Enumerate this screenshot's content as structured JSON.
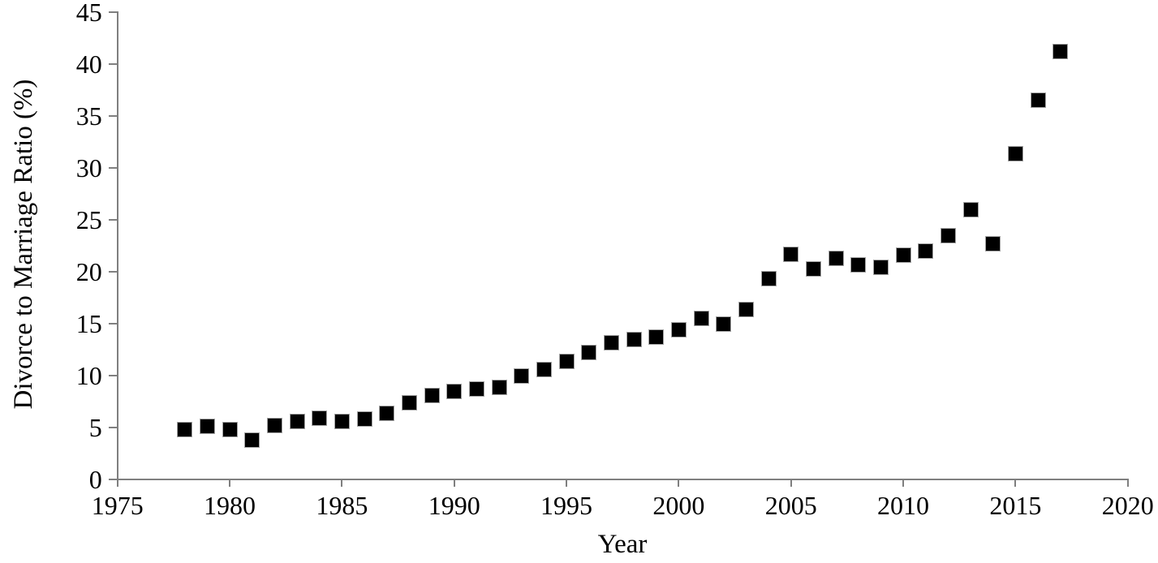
{
  "page": {
    "background": "#ffffff"
  },
  "chart_data": {
    "type": "scatter",
    "title": "",
    "xlabel": "Year",
    "ylabel": "Divorce to Marriage Ratio (%)",
    "xlim": [
      1975,
      2020
    ],
    "ylim": [
      0,
      45
    ],
    "x_tick_step": 5,
    "y_tick_step": 5,
    "x_ticks": [
      "1975",
      "1980",
      "1985",
      "1990",
      "1995",
      "2000",
      "2005",
      "2010",
      "2015",
      "2020"
    ],
    "y_ticks": [
      "0",
      "5",
      "10",
      "15",
      "20",
      "25",
      "30",
      "35",
      "40",
      "45"
    ],
    "grid": false,
    "legend": false,
    "axis_color": "#7f7f7f",
    "marker": {
      "shape": "filled-square",
      "color": "#000000"
    },
    "series": [
      {
        "name": "divorce-to-marriage-ratio",
        "x": [
          1978,
          1979,
          1980,
          1981,
          1982,
          1983,
          1984,
          1985,
          1986,
          1987,
          1988,
          1989,
          1990,
          1991,
          1992,
          1993,
          1994,
          1995,
          1996,
          1997,
          1998,
          1999,
          2000,
          2001,
          2002,
          2003,
          2004,
          2005,
          2006,
          2007,
          2008,
          2009,
          2010,
          2011,
          2012,
          2013,
          2014,
          2015,
          2016,
          2017
        ],
        "y": [
          4.8,
          5.1,
          4.8,
          3.8,
          5.2,
          5.6,
          5.9,
          5.6,
          5.8,
          6.4,
          7.4,
          8.1,
          8.5,
          8.7,
          8.9,
          10.0,
          10.6,
          11.4,
          12.2,
          13.2,
          13.5,
          13.7,
          14.4,
          15.5,
          15.0,
          16.4,
          19.3,
          21.7,
          20.3,
          21.3,
          20.7,
          20.4,
          21.6,
          22.0,
          23.5,
          26.0,
          22.7,
          31.4,
          36.5,
          41.2
        ]
      }
    ]
  }
}
